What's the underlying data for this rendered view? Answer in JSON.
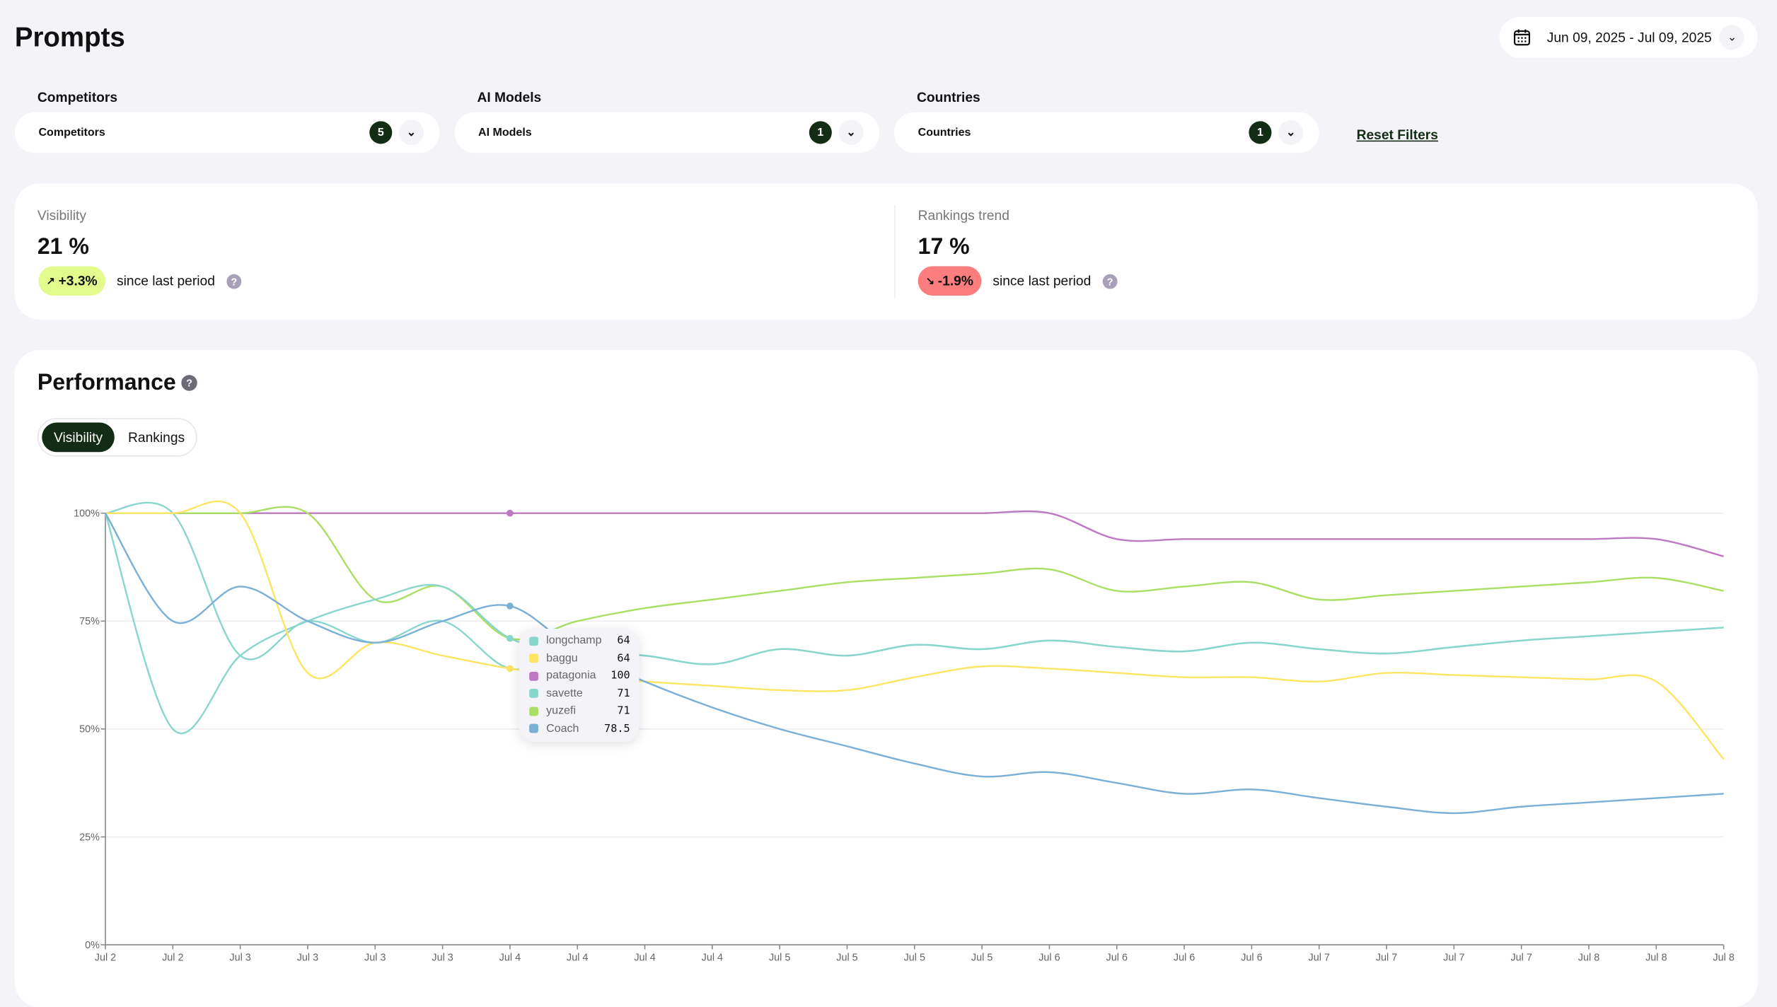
{
  "header": {
    "title": "Prompts",
    "date_range": "Jun 09, 2025 - Jul 09, 2025"
  },
  "filters": [
    {
      "label": "Competitors",
      "value": "Competitors",
      "count": "5"
    },
    {
      "label": "AI Models",
      "value": "AI Models",
      "count": "1"
    },
    {
      "label": "Countries",
      "value": "Countries",
      "count": "1"
    }
  ],
  "reset_label": "Reset Filters",
  "metrics": [
    {
      "label": "Visibility",
      "value": "21 %",
      "change": "+3.3%",
      "direction": "up",
      "since": "since last period",
      "color": "#e2fb8c"
    },
    {
      "label": "Rankings trend",
      "value": "17 %",
      "change": "-1.9%",
      "direction": "down",
      "since": "since last period",
      "color": "#fb7d7d"
    }
  ],
  "performance": {
    "title": "Performance",
    "tabs": [
      "Visibility",
      "Rankings"
    ],
    "active_tab": "Visibility"
  },
  "tooltip": {
    "rows": [
      {
        "name": "longchamp",
        "value": "64",
        "color": "#88d6cc"
      },
      {
        "name": "baggu",
        "value": "64",
        "color": "#fde463"
      },
      {
        "name": "patagonia",
        "value": "100",
        "color": "#bd79c1"
      },
      {
        "name": "savette",
        "value": "71",
        "color": "#88d6cc"
      },
      {
        "name": "yuzefi",
        "value": "71",
        "color": "#a9df62"
      },
      {
        "name": "Coach",
        "value": "78.5",
        "color": "#7aafd6"
      }
    ]
  },
  "chart_data": {
    "type": "line",
    "ylim": [
      0,
      100
    ],
    "yticks": [
      "0%",
      "25%",
      "50%",
      "75%",
      "100%"
    ],
    "ytick_values": [
      0,
      25,
      50,
      75,
      100
    ],
    "categories": [
      "Jul 2",
      "Jul 2",
      "Jul 3",
      "Jul 3",
      "Jul 3",
      "Jul 3",
      "Jul 4",
      "Jul 4",
      "Jul 4",
      "Jul 4",
      "Jul 5",
      "Jul 5",
      "Jul 5",
      "Jul 5",
      "Jul 6",
      "Jul 6",
      "Jul 6",
      "Jul 6",
      "Jul 7",
      "Jul 7",
      "Jul 7",
      "Jul 7",
      "Jul 8",
      "Jul 8",
      "Jul 8"
    ],
    "hover_index": 6,
    "series": [
      {
        "name": "patagonia",
        "color": "#bd79c1",
        "values": [
          100,
          100,
          100,
          100,
          100,
          100,
          100,
          100,
          100,
          100,
          100,
          100,
          100,
          100,
          100,
          94,
          94,
          94,
          94,
          94,
          94,
          94,
          94,
          94,
          90
        ]
      },
      {
        "name": "yuzefi",
        "color": "#a9df62",
        "values": [
          100,
          100,
          100,
          100,
          80,
          83,
          71,
          75,
          78,
          80,
          82,
          84,
          85,
          86,
          87,
          82,
          83,
          84,
          80,
          81,
          82,
          83,
          84,
          85,
          82
        ]
      },
      {
        "name": "savette",
        "color": "#88d6cc",
        "values": [
          100,
          50,
          67,
          75,
          80,
          83,
          71,
          68,
          67,
          65,
          68.5,
          67,
          69.5,
          68.5,
          70.5,
          69,
          68,
          70,
          68.5,
          67.5,
          69,
          70.5,
          71.5,
          72.5,
          73.5
        ]
      },
      {
        "name": "longchamp",
        "color": "#88d6cc",
        "values": [
          100,
          100,
          67,
          75,
          70,
          75,
          64,
          68,
          67,
          65,
          68.5,
          67,
          69.5,
          68.5,
          70.5,
          69,
          68,
          70,
          68.5,
          67.5,
          69,
          70.5,
          71.5,
          72.5,
          73.5
        ]
      },
      {
        "name": "baggu",
        "color": "#fde463",
        "values": [
          100,
          100,
          100,
          63,
          70,
          67,
          64,
          62,
          61,
          60,
          59,
          59,
          62,
          64.5,
          64,
          63,
          62,
          62,
          61,
          63,
          62.5,
          62,
          61.5,
          61,
          43
        ]
      },
      {
        "name": "Coach",
        "color": "#7aafd6",
        "values": [
          100,
          75,
          83,
          75,
          70,
          75,
          78.5,
          68,
          61,
          55,
          50,
          46,
          42,
          39,
          40,
          37.5,
          35,
          36,
          34,
          32,
          30.5,
          32,
          33,
          34,
          35
        ]
      }
    ]
  }
}
